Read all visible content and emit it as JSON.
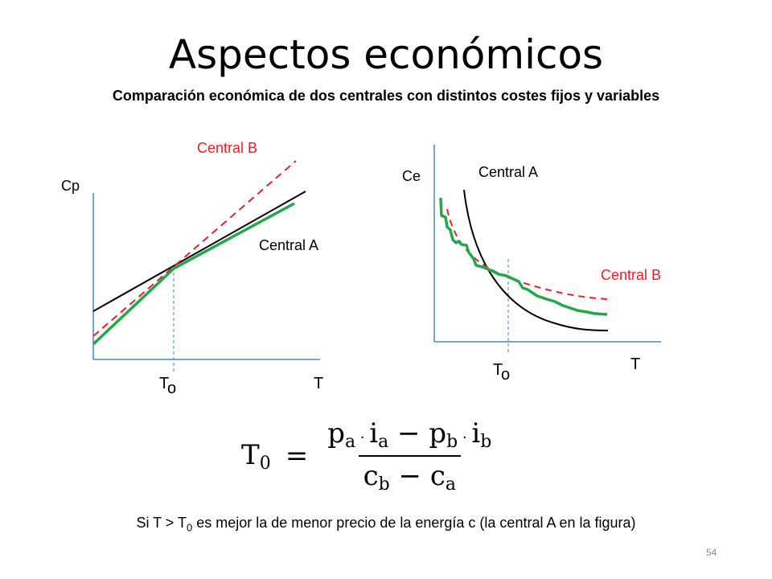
{
  "slide": {
    "title": "Aspectos económicos",
    "subtitle": "Comparación económica de dos centrales con distintos costes fijos y variables",
    "page_number": "54"
  },
  "left_chart": {
    "y_label": "Cp",
    "x_label": "T",
    "t0_label": "T",
    "t0_sub": "o",
    "series_b_label": "Central B",
    "series_a_label": "Central A"
  },
  "right_chart": {
    "y_label": "Ce",
    "x_label": "T",
    "t0_label": "T",
    "t0_sub": "o",
    "series_a_label": "Central A",
    "series_b_label": "Central B"
  },
  "formula": {
    "lhs": "T",
    "lhs_sub": "0",
    "eq": "=",
    "num_p": "p",
    "num_p_sub": "a",
    "num_dot1": " · ",
    "num_i": "i",
    "num_i_sub": "a",
    "num_minus": " − ",
    "num_p2": "p",
    "num_p2_sub": "b",
    "num_dot2": " · ",
    "num_i2": "i",
    "num_i2_sub": "b",
    "den_c": "c",
    "den_c_sub": "b",
    "den_minus": " − ",
    "den_c2": "c",
    "den_c2_sub": "a"
  },
  "note": {
    "pre": "Si T > T",
    "sub": "0",
    "post": " es mejor la de menor precio de la energía c (la central A en la figura)"
  },
  "colors": {
    "central_a": "#000000",
    "central_b": "#e8202a",
    "optimal": "#22a84a",
    "axis": "#4a86c8",
    "t0_guide": "#4a86c8"
  }
}
